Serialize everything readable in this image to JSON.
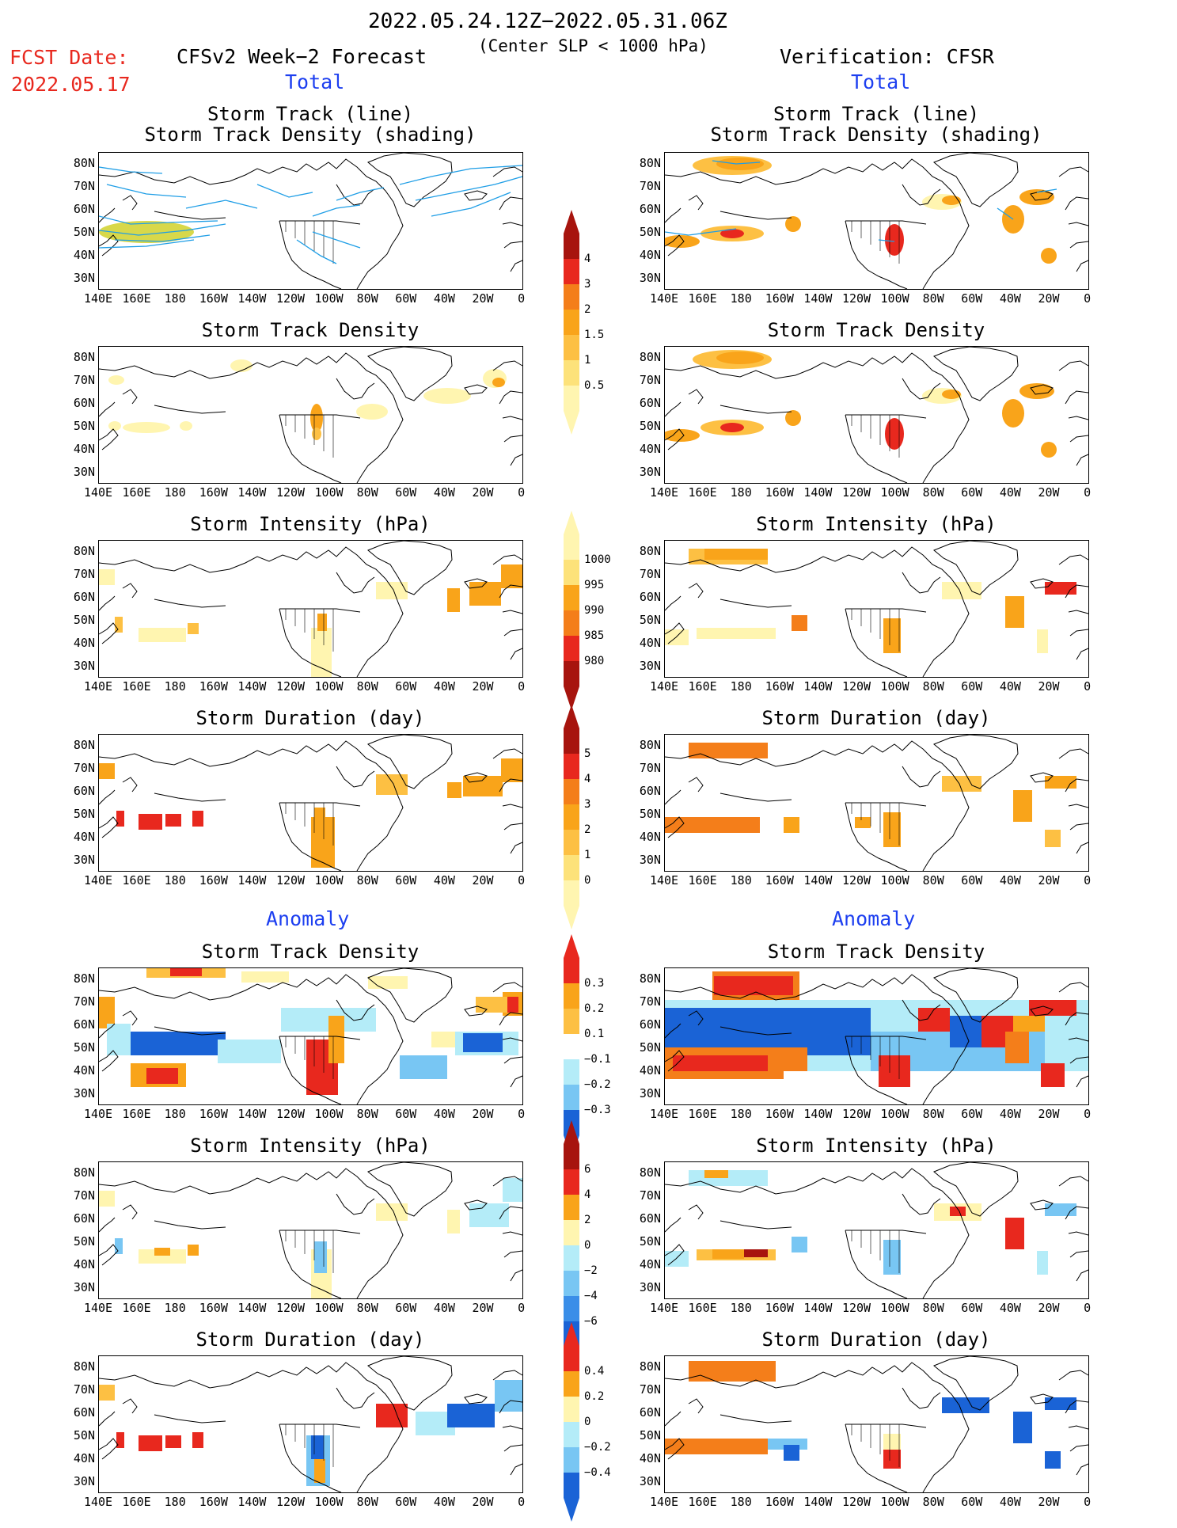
{
  "header": {
    "date_range": "2022.05.24.12Z−2022.05.31.06Z",
    "subtitle": "(Center SLP < 1000 hPa)",
    "fcst_label": "FCST Date:",
    "fcst_date": "2022.05.17",
    "left_title": "CFSv2 Week−2 Forecast",
    "right_title": "Verification: CFSR",
    "total_label": "Total",
    "anomaly_label": "Anomaly"
  },
  "panel_titles": {
    "track_line": "Storm Track (line)",
    "track_density_shading": "Storm Track Density (shading)",
    "track_density": "Storm Track Density",
    "intensity": "Storm Intensity (hPa)",
    "duration": "Storm Duration (day)"
  },
  "axes": {
    "lat_labels": [
      "80N",
      "70N",
      "60N",
      "50N",
      "40N",
      "30N"
    ],
    "lon_labels": [
      "140E",
      "160E",
      "180",
      "160W",
      "140W",
      "120W",
      "100W",
      "80W",
      "60W",
      "40W",
      "20W",
      "0"
    ]
  },
  "colorbars": {
    "density": [
      "4",
      "3",
      "2",
      "1.5",
      "1",
      "0.5"
    ],
    "intensity": [
      "1000",
      "995",
      "990",
      "985",
      "980"
    ],
    "duration": [
      "5",
      "4",
      "3",
      "2",
      "1",
      "0"
    ],
    "density_anom": [
      "0.3",
      "0.2",
      "0.1",
      "−0.1",
      "−0.2",
      "−0.3"
    ],
    "intensity_anom": [
      "6",
      "4",
      "2",
      "0",
      "−2",
      "−4",
      "−6"
    ],
    "duration_anom": [
      "0.4",
      "0.2",
      "0",
      "−0.2",
      "−0.4"
    ]
  },
  "colors": {
    "light_yellow": "#fff5b0",
    "yellow": "#fde27a",
    "light_orange": "#fdc043",
    "orange": "#f9a41a",
    "dark_orange": "#f47e1a",
    "red": "#e8281e",
    "dark_red": "#a7140e",
    "light_blue": "#b4ecf8",
    "mid_blue": "#78c6f3",
    "blue": "#3a8ee8",
    "dark_blue": "#1a63d6",
    "track_blue": "#1f9ee6",
    "track_yellow": "#d8d84a"
  }
}
